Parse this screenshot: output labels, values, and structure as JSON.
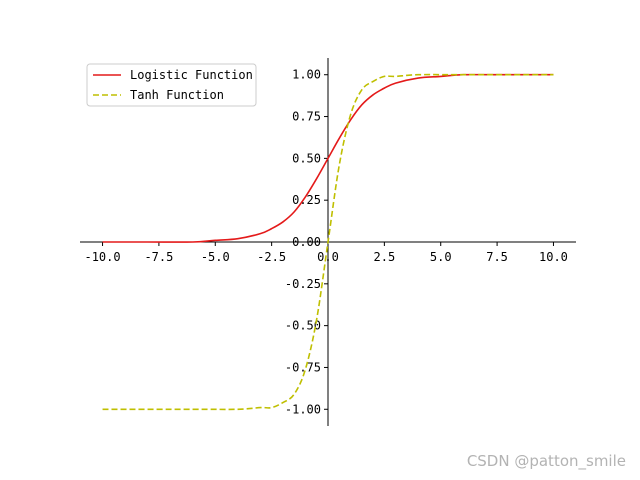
{
  "chart_data": {
    "type": "line",
    "title": "",
    "xlabel": "",
    "ylabel": "",
    "xlim": [
      -11,
      11
    ],
    "ylim": [
      -1.1,
      1.1
    ],
    "spines": "centered at origin",
    "grid": false,
    "x_ticks": [
      -10.0,
      -7.5,
      -5.0,
      -2.5,
      0.0,
      2.5,
      5.0,
      7.5,
      10.0
    ],
    "x_tick_labels": [
      "-10.0",
      "-7.5",
      "-5.0",
      "-2.5",
      "0.0",
      "2.5",
      "5.0",
      "7.5",
      "10.0"
    ],
    "y_ticks": [
      -1.0,
      -0.75,
      -0.5,
      -0.25,
      0.0,
      0.25,
      0.5,
      0.75,
      1.0
    ],
    "y_tick_labels": [
      "-1.00",
      "-0.75",
      "-0.50",
      "-0.25",
      "0.00",
      "0.25",
      "0.50",
      "0.75",
      "1.00"
    ],
    "legend_position": "upper-left",
    "series": [
      {
        "name": "Logistic Function",
        "color": "#e41a1a",
        "style": "solid",
        "x": [
          -10,
          -8,
          -6,
          -5,
          -4,
          -3,
          -2.5,
          -2,
          -1.5,
          -1,
          -0.5,
          0,
          0.5,
          1,
          1.5,
          2,
          2.5,
          3,
          4,
          5,
          6,
          8,
          10
        ],
        "y": [
          0.0,
          0.0,
          0.0,
          0.01,
          0.02,
          0.05,
          0.08,
          0.12,
          0.18,
          0.27,
          0.38,
          0.5,
          0.62,
          0.73,
          0.82,
          0.88,
          0.92,
          0.95,
          0.98,
          0.99,
          1.0,
          1.0,
          1.0
        ]
      },
      {
        "name": "Tanh Function",
        "color": "#bfbf00",
        "style": "dashed",
        "x": [
          -10,
          -6,
          -4,
          -3,
          -2.5,
          -2,
          -1.5,
          -1,
          -0.5,
          0,
          0.5,
          1,
          1.5,
          2,
          2.5,
          3,
          4,
          6,
          10
        ],
        "y": [
          -1.0,
          -1.0,
          -1.0,
          -0.99,
          -0.99,
          -0.96,
          -0.91,
          -0.76,
          -0.46,
          0.0,
          0.46,
          0.76,
          0.91,
          0.96,
          0.99,
          0.99,
          1.0,
          1.0,
          1.0
        ]
      }
    ]
  },
  "watermark": "CSDN @patton_smile"
}
